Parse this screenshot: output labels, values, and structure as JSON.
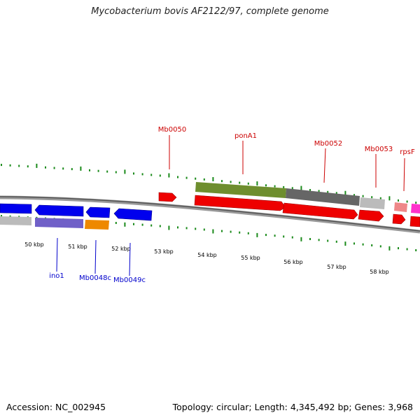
{
  "title": "Mycobacterium bovis AF2122/97, complete genome",
  "footer": {
    "accession": "Accession: NC_002945",
    "summary": "Topology: circular; Length: 4,345,492 bp; Genes: 3,968"
  },
  "colors": {
    "forward_label": "#cc0000",
    "reverse_label": "#0000cc",
    "tick": "#1a8a1a",
    "backbone": "#777777"
  },
  "scale_labels": [
    "50 kbp",
    "51 kbp",
    "52 kbp",
    "53 kbp",
    "54 kbp",
    "55 kbp",
    "56 kbp",
    "57 kbp",
    "58 kbp"
  ],
  "forward_gene_labels": [
    "Mb0050",
    "ponA1",
    "Mb0052",
    "Mb0053",
    "rpsF"
  ],
  "reverse_gene_labels": [
    "ino1",
    "Mb0048c",
    "Mb0049c"
  ]
}
